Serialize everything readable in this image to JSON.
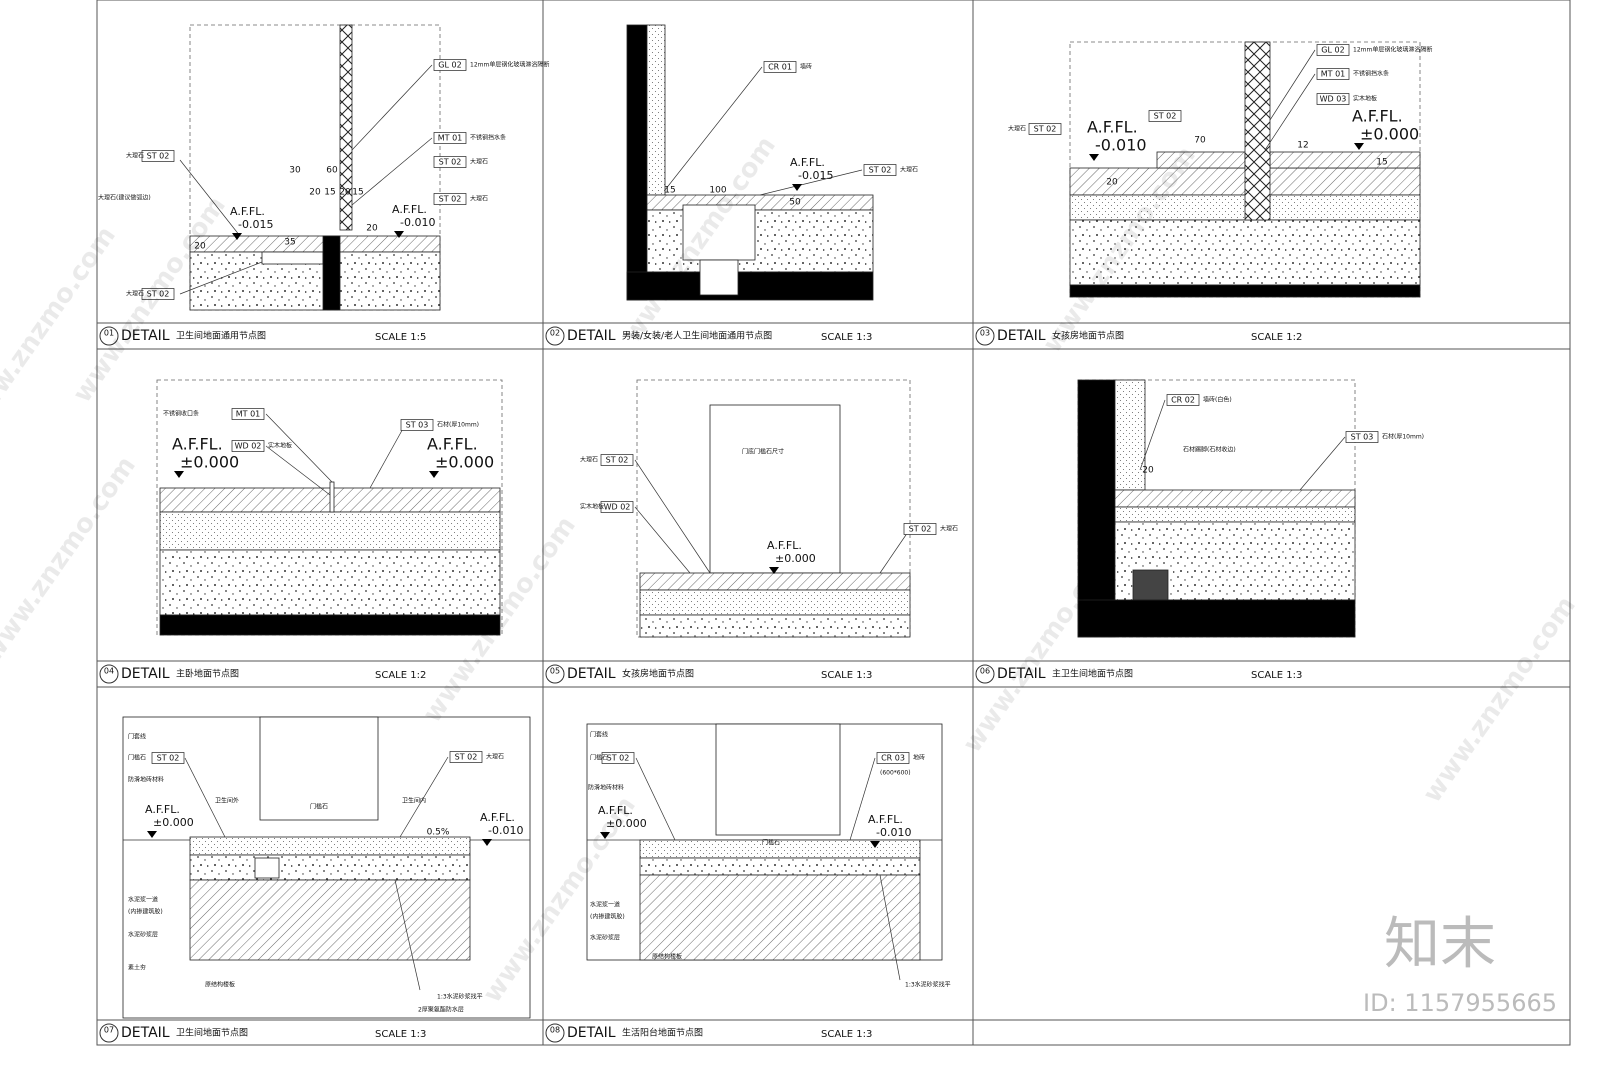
{
  "panels": [
    {
      "number": "01",
      "label": "DETAIL",
      "title": "卫生间地面通用节点图",
      "scale": "SCALE 1:5",
      "tags": [
        "GL 02",
        "MT 01",
        "ST 02",
        "ST 02",
        "ST 02",
        "ST 02"
      ],
      "notes": [
        "12mm单层钢化玻璃淋浴隔断",
        "不锈钢挡水条",
        "大理石",
        "大理石",
        "大理石",
        "大理石(建议做弧边)",
        "大理石"
      ],
      "dims": [
        30,
        60,
        20,
        15,
        20,
        15,
        20,
        20,
        35
      ],
      "levels": [
        {
          "label": "A.F.FL.",
          "value": "-0.015"
        },
        {
          "label": "A.F.FL.",
          "value": "-0.010"
        }
      ]
    },
    {
      "number": "02",
      "label": "DETAIL",
      "title": "男装/女装/老人卫生间地面通用节点图",
      "scale": "SCALE  1:3",
      "tags": [
        "CR 01",
        "ST 02"
      ],
      "notes": [
        "墙砖",
        "大理石"
      ],
      "dims": [
        100,
        50,
        15
      ],
      "levels": [
        {
          "label": "A.F.FL.",
          "value": "-0.015"
        }
      ]
    },
    {
      "number": "03",
      "label": "DETAIL",
      "title": "女孩房地面节点图",
      "scale": "SCALE 1:2",
      "tags": [
        "GL 02",
        "MT 01",
        "WD 03",
        "ST 02",
        "ST 02"
      ],
      "notes": [
        "12mm单层钢化玻璃淋浴隔断",
        "不锈钢挡水条",
        "实木地板",
        "大理石"
      ],
      "dims": [
        70,
        20,
        15,
        12
      ],
      "levels": [
        {
          "label": "A.F.FL.",
          "value": "-0.010"
        },
        {
          "label": "A.F.FL.",
          "value": "±0.000"
        }
      ]
    },
    {
      "number": "04",
      "label": "DETAIL",
      "title": "主卧地面节点图",
      "scale": "SCALE 1:2",
      "tags": [
        "MT 01",
        "WD 02",
        "ST 03"
      ],
      "notes": [
        "不锈钢收口条",
        "实木地板",
        "石材(厚10mm)"
      ],
      "dims": [],
      "levels": [
        {
          "label": "A.F.FL.",
          "value": "±0.000"
        },
        {
          "label": "A.F.FL.",
          "value": "±0.000"
        }
      ]
    },
    {
      "number": "05",
      "label": "DETAIL",
      "title": "女孩房地面节点图",
      "scale": "SCALE 1:3",
      "tags": [
        "ST 02",
        "WD 02",
        "ST 02"
      ],
      "notes": [
        "大理石",
        "实木地板",
        "大理石",
        "门底门槛石尺寸"
      ],
      "dims": [],
      "levels": [
        {
          "label": "A.F.FL.",
          "value": "±0.000"
        }
      ]
    },
    {
      "number": "06",
      "label": "DETAIL",
      "title": "主卫生间地面节点图",
      "scale": "SCALE 1:3",
      "tags": [
        "CR 02",
        "ST 03"
      ],
      "notes": [
        "墙砖(白色)",
        "石材(厚10mm)",
        "石材踢脚(石材收边)"
      ],
      "dims": [
        20
      ],
      "levels": []
    },
    {
      "number": "07",
      "label": "DETAIL",
      "title": "卫生间地面节点图",
      "scale": "SCALE 1:3",
      "tags": [
        "ST 02",
        "ST 02"
      ],
      "notes": [
        "门套线",
        "门槛石",
        "防滑地砖材料",
        "卫生间外",
        "卫生间内",
        "门槛石",
        "大理石",
        "水泥浆一道",
        "(内掺建筑胶)",
        "水泥砂浆层",
        "素土夯",
        "原结构楼板",
        "1:3水泥砂浆找平",
        "2厚聚氨酯防水层"
      ],
      "dims": [
        "0.5%"
      ],
      "levels": [
        {
          "label": "A.F.FL.",
          "value": "±0.000"
        },
        {
          "label": "A.F.FL.",
          "value": "-0.010"
        }
      ]
    },
    {
      "number": "08",
      "label": "DETAIL",
      "title": "生活阳台地面节点图",
      "scale": "SCALE 1:3",
      "tags": [
        "ST 02",
        "CR 03"
      ],
      "notes": [
        "门套线",
        "门槛石",
        "防滑地砖材料",
        "门槛石",
        "地砖",
        "(600*600)",
        "水泥浆一道",
        "(内掺建筑胶)",
        "水泥砂浆层",
        "原结构楼板",
        "1:3水泥砂浆找平"
      ],
      "dims": [],
      "levels": [
        {
          "label": "A.F.FL.",
          "value": "±0.000"
        },
        {
          "label": "A.F.FL.",
          "value": "-0.010"
        }
      ]
    }
  ],
  "watermark": {
    "brand": "知末",
    "id": "ID: 1157955665",
    "site": "www.znzmo.com"
  }
}
